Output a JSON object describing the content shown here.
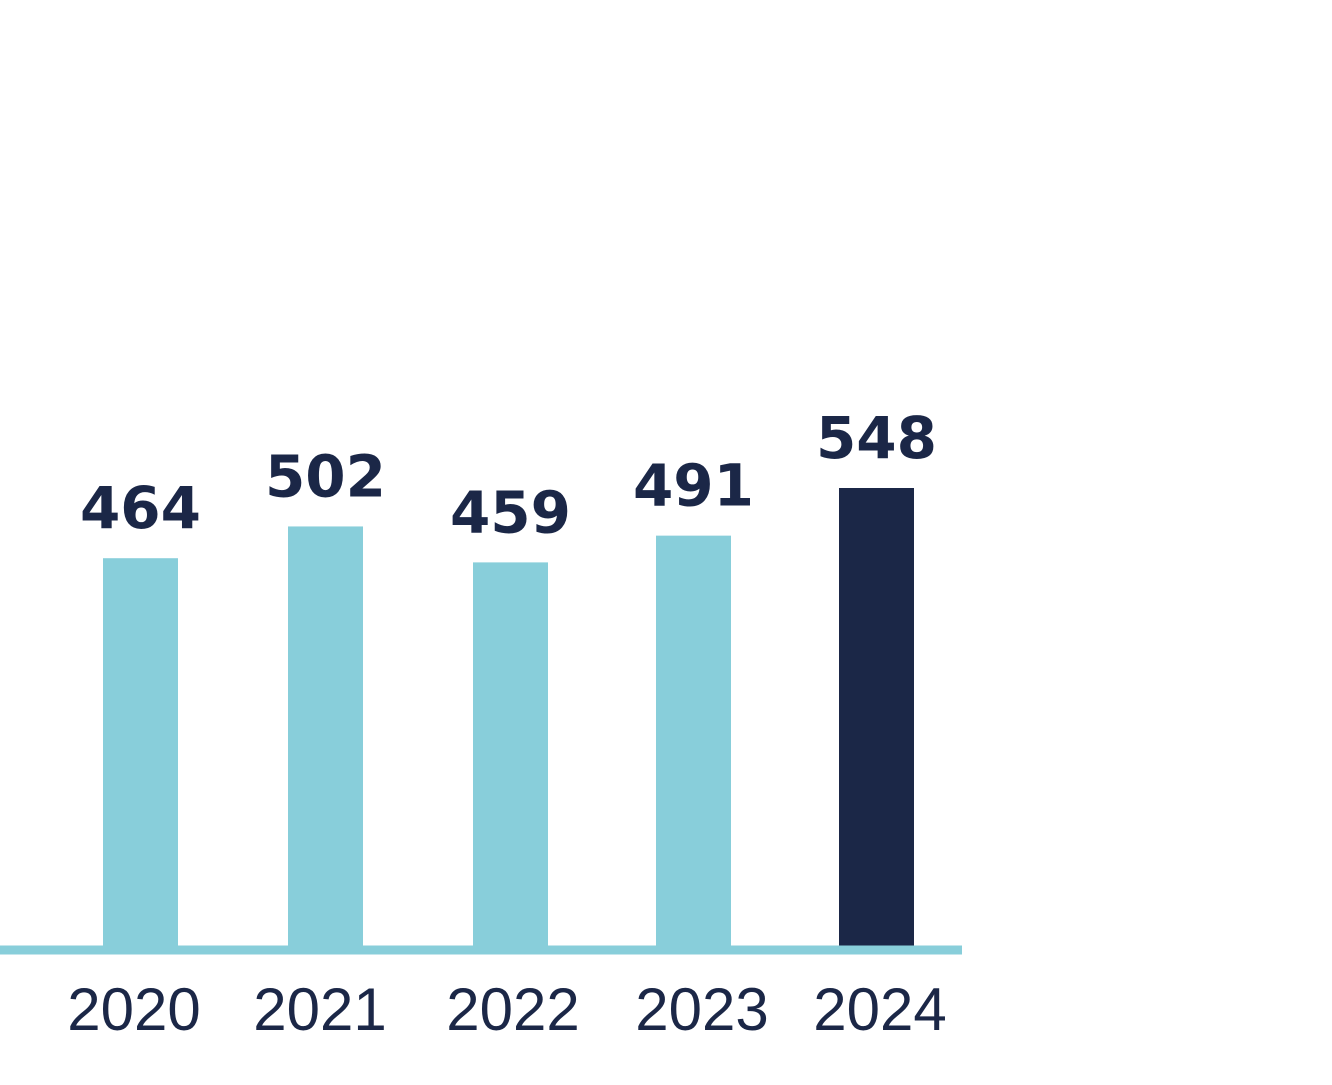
{
  "chart_data": {
    "type": "bar",
    "categories": [
      "2020",
      "2021",
      "2022",
      "2023",
      "2024"
    ],
    "values": [
      464,
      502,
      459,
      491,
      548
    ],
    "title": "",
    "xlabel": "",
    "ylabel": "",
    "grid": false,
    "legend": "none",
    "colors": {
      "bar": "#88ceda",
      "highlight_bar": "#1b2747",
      "axis": "#88ceda",
      "text": "#1b2747"
    },
    "highlight_index": 4
  }
}
